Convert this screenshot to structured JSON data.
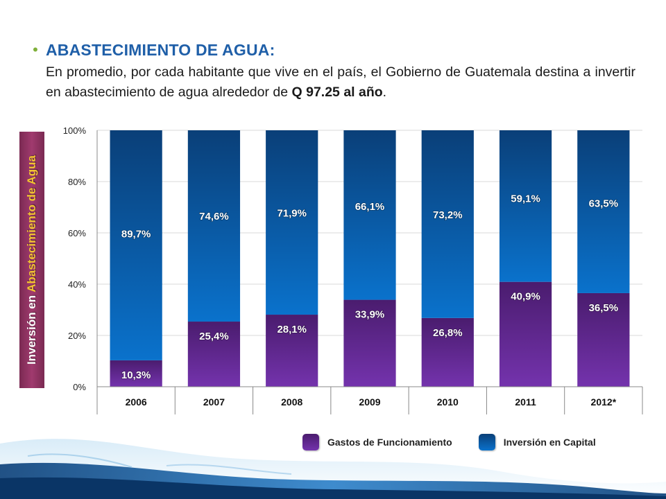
{
  "header": {
    "bullet": "•",
    "title": "ABASTECIMIENTO DE AGUA:",
    "text_part1": "En promedio, por cada habitante que vive en el país, el Gobierno de Guatemala destina a invertir en abastecimiento de agua alrededor de ",
    "text_bold": "Q 97.25 al año",
    "text_part2": "."
  },
  "axis_title": {
    "part1": "Inversión en ",
    "part2": "Abastecimiento de Agua"
  },
  "legend": {
    "gastos": "Gastos de Funcionamiento",
    "inversion": "Inversión en Capital"
  },
  "colors": {
    "gastos": "#6a2fa0",
    "inversion": "#0f63b4",
    "accent_green": "#7fb03a",
    "title_blue": "#1f5fa8"
  },
  "chart_data": {
    "type": "bar",
    "stacked": true,
    "percent": true,
    "categories": [
      "2006",
      "2007",
      "2008",
      "2009",
      "2010",
      "2011",
      "2012*"
    ],
    "series": [
      {
        "name": "Gastos de Funcionamiento",
        "values": [
          10.3,
          25.4,
          28.1,
          33.9,
          26.8,
          40.9,
          36.5
        ],
        "labels": [
          "10,3%",
          "25,4%",
          "28,1%",
          "33,9%",
          "26,8%",
          "40,9%",
          "36,5%"
        ]
      },
      {
        "name": "Inversión en Capital",
        "values": [
          89.7,
          74.6,
          71.9,
          66.1,
          73.2,
          59.1,
          63.5
        ],
        "labels": [
          "89,7%",
          "74,6%",
          "71,9%",
          "66,1%",
          "73,2%",
          "59,1%",
          "63,5%"
        ]
      }
    ],
    "ylim": [
      0,
      100
    ],
    "yticks": [
      "0%",
      "20%",
      "40%",
      "60%",
      "80%",
      "100%"
    ],
    "ylabel": "Inversión en Abastecimiento de Agua",
    "grid": true,
    "legend_position": "bottom-right"
  }
}
